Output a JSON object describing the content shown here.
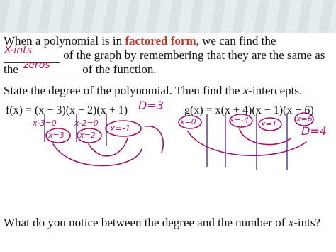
{
  "paragraph": {
    "line1_before": "When a polynomial is in ",
    "highlight": "factored form",
    "line1_after": ", we can find the",
    "blank1": "X-ints",
    "line2": "of the graph by remembering that they are the same as",
    "line3_start": "the",
    "blank2": "zeros",
    "line3_end": "of the function."
  },
  "instruction": {
    "before": "State the degree of the polynomial. Then find the ",
    "var": "x",
    "after": "-intercepts."
  },
  "examples": [
    {
      "function": "f(x) = (x − 3)(x − 2)(x + 1)",
      "degree_note": "D=3",
      "work": [
        "x-3=0",
        "x-2=0"
      ],
      "answers": [
        "x=3",
        "x=2",
        "x=-1"
      ]
    },
    {
      "function": "g(x) = x(x + 4)(x − 1)(x − 6)",
      "degree_note": "D=4",
      "answers": [
        "x=0",
        "x=-4",
        "x=1",
        "x=6"
      ]
    }
  ],
  "question": {
    "before": "What do you notice between the degree and the number of ",
    "var": "x",
    "after": "-ints?"
  }
}
